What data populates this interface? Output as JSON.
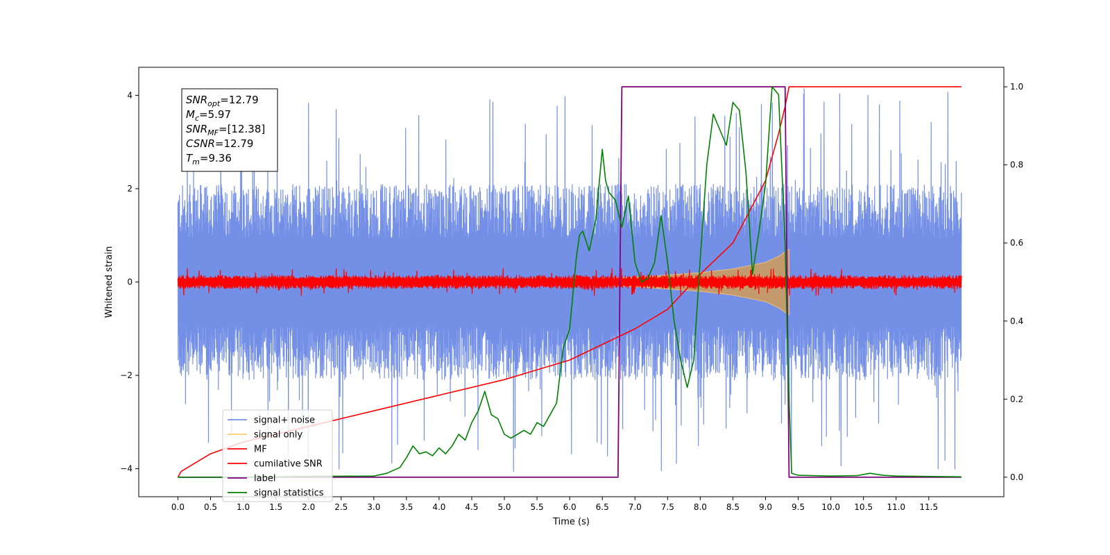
{
  "chart_data": {
    "type": "line",
    "xlabel": "Time (s)",
    "ylabel": "Whitened strain",
    "xlim": [
      -0.6,
      12.65
    ],
    "ylim": [
      -4.6,
      4.6
    ],
    "ylim_right": [
      -0.05,
      1.05
    ],
    "x_ticks": [
      0.0,
      0.5,
      1.0,
      1.5,
      2.0,
      2.5,
      3.0,
      3.5,
      4.0,
      4.5,
      5.0,
      5.5,
      6.0,
      6.5,
      7.0,
      7.5,
      8.0,
      8.5,
      9.0,
      9.5,
      10.0,
      10.5,
      11.0,
      11.5
    ],
    "x_tick_labels": [
      "0.0",
      "0.5",
      "1.0",
      "1.5",
      "2.0",
      "2.5",
      "3.0",
      "3.5",
      "4.0",
      "4.5",
      "5.0",
      "5.5",
      "6.0",
      "6.5",
      "7.0",
      "7.5",
      "8.0",
      "8.5",
      "9.0",
      "9.5",
      "10.0",
      "10.5",
      "11.0",
      "11.5"
    ],
    "y_ticks": [
      -4,
      -2,
      0,
      2,
      4
    ],
    "y_tick_labels": [
      "−4",
      "−2",
      "0",
      "2",
      "4"
    ],
    "y_ticks_right": [
      0.0,
      0.2,
      0.4,
      0.6,
      0.8,
      1.0
    ],
    "y_tick_labels_right": [
      "0.0",
      "0.2",
      "0.4",
      "0.6",
      "0.8",
      "1.0"
    ],
    "grid": false,
    "legend_position": "lower-left",
    "annotation": {
      "lines": [
        {
          "base": "SNR",
          "sub": "opt",
          "value": "=12.79"
        },
        {
          "base": "M",
          "sub": "c",
          "value": "=5.97"
        },
        {
          "base": "SNR",
          "sub": "MF",
          "value": "=[12.38]"
        },
        {
          "base": "CSNR",
          "sub": "",
          "value": "=12.79"
        },
        {
          "base": "T",
          "sub": "m",
          "value": "=9.36"
        }
      ]
    },
    "series": [
      {
        "name": "signal+ noise",
        "color": "#7490e6",
        "axis": "left",
        "kind": "noise_band",
        "x_range": [
          0.0,
          12.0
        ],
        "envelope_typical": 2.1,
        "envelope_peak": 4.15
      },
      {
        "name": "signal only",
        "color": "#ffc970",
        "axis": "left",
        "kind": "chirp_envelope",
        "envelope_x": [
          5.0,
          6.0,
          7.0,
          8.0,
          8.5,
          9.0,
          9.2,
          9.3,
          9.36
        ],
        "envelope_y": [
          0.02,
          0.05,
          0.1,
          0.2,
          0.28,
          0.42,
          0.55,
          0.65,
          0.7
        ]
      },
      {
        "name": "MF",
        "color": "#ff0000",
        "axis": "left",
        "kind": "noise_band",
        "x_range": [
          0.0,
          12.0
        ],
        "envelope_typical": 0.15,
        "envelope_peak": 0.3
      },
      {
        "name": "cumilative SNR",
        "color": "#ff0000",
        "axis": "right",
        "kind": "line",
        "x": [
          0.0,
          0.05,
          0.5,
          1.0,
          2.0,
          3.0,
          4.0,
          5.0,
          6.0,
          6.5,
          7.0,
          7.5,
          8.0,
          8.5,
          9.0,
          9.2,
          9.3,
          9.36,
          12.0
        ],
        "y": [
          0.0,
          0.015,
          0.06,
          0.09,
          0.13,
          0.17,
          0.21,
          0.25,
          0.3,
          0.34,
          0.38,
          0.43,
          0.52,
          0.6,
          0.76,
          0.88,
          0.95,
          1.0,
          1.0
        ]
      },
      {
        "name": "label",
        "color": "#800080",
        "axis": "right",
        "kind": "line",
        "x": [
          0.0,
          6.74,
          6.8,
          9.3,
          9.36,
          12.0
        ],
        "y": [
          0.0,
          0.0,
          1.0,
          1.0,
          0.0,
          0.0
        ]
      },
      {
        "name": "signal statistics",
        "color": "#008000",
        "axis": "right",
        "kind": "line",
        "x": [
          0.0,
          1.0,
          2.0,
          3.0,
          3.2,
          3.4,
          3.5,
          3.6,
          3.7,
          3.8,
          3.9,
          4.0,
          4.1,
          4.2,
          4.3,
          4.4,
          4.5,
          4.6,
          4.7,
          4.8,
          4.9,
          5.0,
          5.1,
          5.2,
          5.3,
          5.4,
          5.5,
          5.6,
          5.7,
          5.8,
          5.9,
          6.0,
          6.1,
          6.15,
          6.2,
          6.3,
          6.4,
          6.5,
          6.55,
          6.6,
          6.7,
          6.8,
          6.9,
          7.0,
          7.1,
          7.2,
          7.3,
          7.4,
          7.5,
          7.6,
          7.7,
          7.8,
          7.9,
          8.0,
          8.1,
          8.2,
          8.3,
          8.4,
          8.5,
          8.6,
          8.7,
          8.8,
          8.9,
          9.0,
          9.1,
          9.2,
          9.3,
          9.35,
          9.4,
          9.5,
          10.0,
          10.4,
          10.6,
          10.8,
          11.0,
          12.0
        ],
        "y": [
          0.0,
          0.0,
          0.002,
          0.003,
          0.01,
          0.025,
          0.05,
          0.08,
          0.06,
          0.065,
          0.055,
          0.075,
          0.06,
          0.08,
          0.11,
          0.095,
          0.14,
          0.17,
          0.22,
          0.16,
          0.15,
          0.11,
          0.1,
          0.11,
          0.12,
          0.11,
          0.14,
          0.13,
          0.16,
          0.19,
          0.33,
          0.38,
          0.56,
          0.62,
          0.63,
          0.58,
          0.66,
          0.84,
          0.76,
          0.73,
          0.71,
          0.64,
          0.72,
          0.55,
          0.5,
          0.51,
          0.55,
          0.67,
          0.55,
          0.4,
          0.3,
          0.23,
          0.3,
          0.56,
          0.8,
          0.93,
          0.89,
          0.85,
          0.96,
          0.94,
          0.78,
          0.52,
          0.63,
          0.75,
          1.0,
          0.98,
          0.6,
          0.25,
          0.01,
          0.005,
          0.003,
          0.004,
          0.01,
          0.005,
          0.003,
          0.001
        ]
      }
    ]
  }
}
